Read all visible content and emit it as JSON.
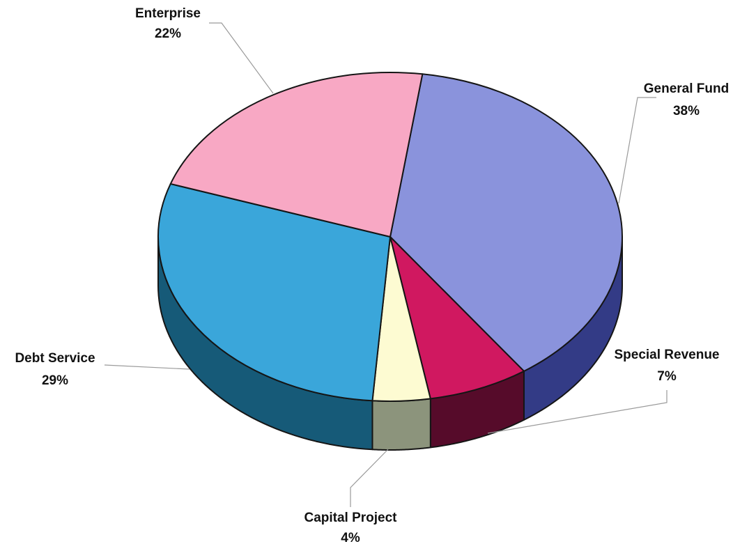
{
  "chart_data": {
    "type": "pie",
    "title": "",
    "slices": [
      {
        "label": "General Fund",
        "value": 38,
        "value_label": "38%",
        "color": "#8a93dc",
        "side_color": "#333b86"
      },
      {
        "label": "Special Revenue",
        "value": 7,
        "value_label": "7%",
        "color": "#d01860",
        "side_color": "#560b2a"
      },
      {
        "label": "Capital Project",
        "value": 4,
        "value_label": "4%",
        "color": "#fdfbd2",
        "side_color": "#8c947c"
      },
      {
        "label": "Debt Service",
        "value": 29,
        "value_label": "29%",
        "color": "#3aa6da",
        "side_color": "#165a78"
      },
      {
        "label": "Enterprise",
        "value": 22,
        "value_label": "22%",
        "color": "#f8a8c4",
        "side_color": "#a85a78"
      }
    ],
    "style": "3d-pie",
    "legend": "none",
    "labels": "outside with leader lines"
  }
}
